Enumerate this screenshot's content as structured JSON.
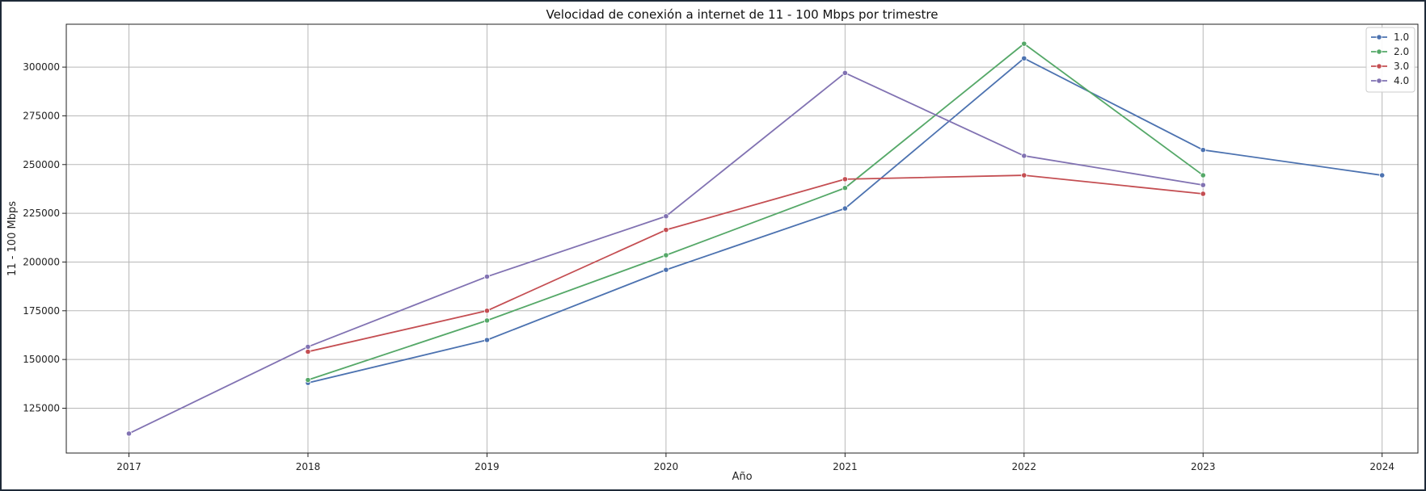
{
  "chart_data": {
    "type": "line",
    "title": "Velocidad de conexión a internet de 11 - 100 Mbps por trimestre",
    "xlabel": "Año",
    "ylabel": "11 - 100 Mbps",
    "x": [
      2017,
      2018,
      2019,
      2020,
      2021,
      2022,
      2023,
      2024
    ],
    "x_tick_labels": [
      "2017",
      "2018",
      "2019",
      "2020",
      "2021",
      "2022",
      "2023",
      "2024"
    ],
    "xlim": [
      2016.65,
      2024.2
    ],
    "ylim": [
      102000,
      322000
    ],
    "y_ticks": [
      125000,
      150000,
      175000,
      200000,
      225000,
      250000,
      275000,
      300000
    ],
    "y_tick_labels": [
      "125000",
      "150000",
      "175000",
      "200000",
      "225000",
      "250000",
      "275000",
      "300000"
    ],
    "grid": true,
    "legend_position": "top-right",
    "series": [
      {
        "name": "1.0",
        "color": "#4c72b0",
        "points": [
          [
            2018,
            138000
          ],
          [
            2019,
            160000
          ],
          [
            2020,
            196000
          ],
          [
            2021,
            227500
          ],
          [
            2022,
            304500
          ],
          [
            2023,
            257500
          ],
          [
            2024,
            244500
          ]
        ]
      },
      {
        "name": "2.0",
        "color": "#55a868",
        "points": [
          [
            2018,
            139500
          ],
          [
            2019,
            170000
          ],
          [
            2020,
            203500
          ],
          [
            2021,
            238000
          ],
          [
            2022,
            312000
          ],
          [
            2023,
            244500
          ]
        ]
      },
      {
        "name": "3.0",
        "color": "#c44e52",
        "points": [
          [
            2018,
            154000
          ],
          [
            2019,
            175000
          ],
          [
            2020,
            216500
          ],
          [
            2021,
            242500
          ],
          [
            2022,
            244500
          ],
          [
            2023,
            235000
          ]
        ]
      },
      {
        "name": "4.0",
        "color": "#8172b2",
        "points": [
          [
            2017,
            112000
          ],
          [
            2018,
            156500
          ],
          [
            2019,
            192500
          ],
          [
            2020,
            223500
          ],
          [
            2021,
            297000
          ],
          [
            2022,
            254500
          ],
          [
            2023,
            239500
          ]
        ]
      }
    ]
  }
}
